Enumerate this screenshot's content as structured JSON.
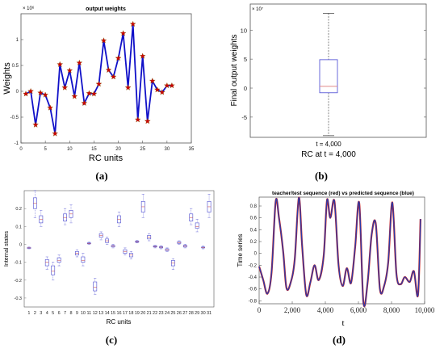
{
  "panels": {
    "a": {
      "label": "(a)",
      "chart_data": {
        "type": "line",
        "title": "output weights",
        "xlabel": "RC units",
        "ylabel": "Weights",
        "exponent": "× 10⁶",
        "xlim": [
          0,
          35
        ],
        "ylim": [
          -1,
          1.5
        ],
        "xticks": [
          0,
          5,
          10,
          15,
          20,
          25,
          30,
          35
        ],
        "yticks": [
          -1,
          -0.5,
          0,
          0.5,
          1
        ],
        "line_color": "#1010c8",
        "marker_color": "#cc0000",
        "x": [
          1,
          2,
          3,
          4,
          5,
          6,
          7,
          8,
          9,
          10,
          11,
          12,
          13,
          14,
          15,
          16,
          17,
          18,
          19,
          20,
          21,
          22,
          23,
          24,
          25,
          26,
          27,
          28,
          29,
          30,
          31
        ],
        "y": [
          -0.05,
          0.0,
          -0.65,
          -0.03,
          -0.07,
          -0.32,
          -0.82,
          0.52,
          0.07,
          0.4,
          -0.1,
          0.55,
          -0.23,
          -0.04,
          -0.05,
          0.14,
          0.98,
          0.41,
          0.28,
          0.64,
          1.12,
          0.07,
          1.3,
          -0.55,
          0.68,
          -0.58,
          0.2,
          0.03,
          -0.02,
          0.11,
          0.11
        ]
      }
    },
    "b": {
      "label": "(b)",
      "chart_data": {
        "type": "box",
        "ylabel": "Final output weights",
        "exponent": "× 10⁷",
        "category_label": "t = 4,000",
        "xlabel": "RC at t = 4,000",
        "ylim": [
          -8.5,
          14.5
        ],
        "yticks": [
          -5,
          0,
          5,
          10
        ],
        "whisker_low": -8.2,
        "q1": -0.8,
        "median": 0.3,
        "q3": 4.9,
        "whisker_high": 12.9,
        "box_color": "#5a5ad8",
        "median_color": "#e08a8a"
      }
    },
    "c": {
      "label": "(c)",
      "chart_data": {
        "type": "box",
        "xlabel": "RC units",
        "ylabel": "Internal states",
        "ylim": [
          -0.35,
          0.3
        ],
        "yticks": [
          -0.3,
          -0.2,
          -0.1,
          0,
          0.1,
          0.2
        ],
        "categories": [
          "1",
          "2",
          "3",
          "4",
          "5",
          "6",
          "7",
          "8",
          "9",
          "10",
          "11",
          "12",
          "13",
          "14",
          "15",
          "16",
          "17",
          "18",
          "19",
          "20",
          "21",
          "22",
          "23",
          "24",
          "25",
          "26",
          "27",
          "28",
          "29",
          "30",
          "31"
        ],
        "boxes": [
          {
            "lo": -0.025,
            "q1": -0.022,
            "med": -0.02,
            "q3": -0.018,
            "hi": -0.015
          },
          {
            "lo": 0.15,
            "q1": 0.2,
            "med": 0.23,
            "q3": 0.26,
            "hi": 0.3
          },
          {
            "lo": 0.1,
            "q1": 0.12,
            "med": 0.14,
            "q3": 0.16,
            "hi": 0.19
          },
          {
            "lo": -0.14,
            "q1": -0.12,
            "med": -0.1,
            "q3": -0.085,
            "hi": -0.07
          },
          {
            "lo": -0.2,
            "q1": -0.17,
            "med": -0.15,
            "q3": -0.12,
            "hi": -0.1
          },
          {
            "lo": -0.12,
            "q1": -0.1,
            "med": -0.09,
            "q3": -0.075,
            "hi": -0.06
          },
          {
            "lo": 0.11,
            "q1": 0.13,
            "med": 0.15,
            "q3": 0.17,
            "hi": 0.2
          },
          {
            "lo": 0.12,
            "q1": 0.15,
            "med": 0.17,
            "q3": 0.19,
            "hi": 0.22
          },
          {
            "lo": -0.07,
            "q1": -0.06,
            "med": -0.05,
            "q3": -0.04,
            "hi": -0.03
          },
          {
            "lo": -0.12,
            "q1": -0.1,
            "med": -0.09,
            "q3": -0.07,
            "hi": -0.05
          },
          {
            "lo": 0.0,
            "q1": 0.003,
            "med": 0.005,
            "q3": 0.008,
            "hi": 0.012
          },
          {
            "lo": -0.28,
            "q1": -0.26,
            "med": -0.24,
            "q3": -0.21,
            "hi": -0.19
          },
          {
            "lo": 0.025,
            "q1": 0.04,
            "med": 0.05,
            "q3": 0.06,
            "hi": 0.07
          },
          {
            "lo": 0.0,
            "q1": 0.01,
            "med": 0.02,
            "q3": 0.03,
            "hi": 0.04
          },
          {
            "lo": -0.02,
            "q1": -0.014,
            "med": -0.01,
            "q3": -0.006,
            "hi": 0.0
          },
          {
            "lo": 0.1,
            "q1": 0.12,
            "med": 0.14,
            "q3": 0.16,
            "hi": 0.18
          },
          {
            "lo": -0.06,
            "q1": -0.05,
            "med": -0.04,
            "q3": -0.03,
            "hi": -0.02
          },
          {
            "lo": -0.08,
            "q1": -0.07,
            "med": -0.06,
            "q3": -0.05,
            "hi": -0.04
          },
          {
            "lo": 0.008,
            "q1": 0.012,
            "med": 0.015,
            "q3": 0.018,
            "hi": 0.022
          },
          {
            "lo": 0.15,
            "q1": 0.18,
            "med": 0.21,
            "q3": 0.24,
            "hi": 0.28
          },
          {
            "lo": 0.02,
            "q1": 0.03,
            "med": 0.04,
            "q3": 0.05,
            "hi": 0.06
          },
          {
            "lo": -0.02,
            "q1": -0.015,
            "med": -0.012,
            "q3": -0.008,
            "hi": -0.005
          },
          {
            "lo": -0.025,
            "q1": -0.02,
            "med": -0.016,
            "q3": -0.012,
            "hi": -0.008
          },
          {
            "lo": -0.04,
            "q1": -0.035,
            "med": -0.03,
            "q3": -0.025,
            "hi": -0.02
          },
          {
            "lo": -0.14,
            "q1": -0.12,
            "med": -0.105,
            "q3": -0.09,
            "hi": -0.08
          },
          {
            "lo": 0.0,
            "q1": 0.005,
            "med": 0.01,
            "q3": 0.015,
            "hi": 0.02
          },
          {
            "lo": -0.02,
            "q1": -0.015,
            "med": -0.01,
            "q3": -0.005,
            "hi": 0.0
          },
          {
            "lo": 0.11,
            "q1": 0.13,
            "med": 0.15,
            "q3": 0.17,
            "hi": 0.2
          },
          {
            "lo": 0.07,
            "q1": 0.09,
            "med": 0.1,
            "q3": 0.12,
            "hi": 0.14
          },
          {
            "lo": -0.025,
            "q1": -0.02,
            "med": -0.018,
            "q3": -0.015,
            "hi": -0.01
          },
          {
            "lo": 0.15,
            "q1": 0.18,
            "med": 0.21,
            "q3": 0.24,
            "hi": 0.28
          }
        ],
        "box_color": "#4a4ad0",
        "median_color": "#d05a5a"
      }
    },
    "d": {
      "label": "(d)",
      "chart_data": {
        "type": "line",
        "title": "teacher/test sequence (red) vs predicted sequence (blue)",
        "xlabel": "t",
        "ylabel": "Time series",
        "xlim": [
          0,
          10000
        ],
        "ylim": [
          -0.85,
          0.95
        ],
        "xtick_labels": [
          "0",
          "2,000",
          "4,000",
          "6,000",
          "8,000",
          "10,000"
        ],
        "xticks": [
          0,
          2000,
          4000,
          6000,
          8000,
          10000
        ],
        "yticks": [
          -0.8,
          -0.6,
          -0.4,
          -0.2,
          0,
          0.2,
          0.4,
          0.6,
          0.8
        ],
        "series": [
          {
            "color": "#cc2222"
          },
          {
            "color": "#2a3aa8"
          }
        ],
        "x": [
          0,
          250,
          500,
          750,
          1000,
          1200,
          1450,
          1650,
          1900,
          2150,
          2400,
          2600,
          2850,
          3100,
          3350,
          3600,
          3900,
          4100,
          4300,
          4550,
          4800,
          5050,
          5300,
          5550,
          5800,
          6050,
          6300,
          6550,
          6800,
          7050,
          7300,
          7550,
          7800,
          8050,
          8300,
          8550,
          8800,
          9100,
          9350,
          9600,
          9750
        ],
        "y": [
          -0.22,
          -0.45,
          -0.68,
          -0.32,
          0.88,
          0.6,
          0.04,
          -0.58,
          -0.5,
          -0.1,
          0.94,
          0.12,
          -0.7,
          -0.48,
          -0.2,
          -0.45,
          -0.05,
          0.9,
          0.6,
          0.88,
          -0.2,
          -0.55,
          -0.25,
          -0.5,
          0.1,
          0.85,
          -0.82,
          -0.5,
          0.32,
          0.5,
          -0.6,
          -0.55,
          -0.15,
          0.86,
          -0.35,
          -0.52,
          -0.4,
          -0.48,
          -0.3,
          -0.7,
          0.58
        ]
      }
    }
  }
}
